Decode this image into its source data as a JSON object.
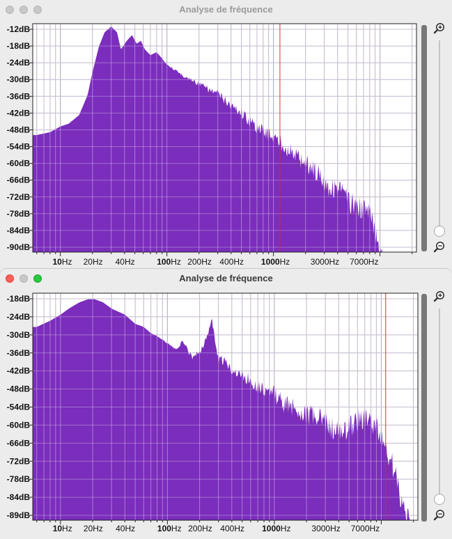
{
  "colors": {
    "spectrum": "#7b2dbc",
    "cursor_line": "#dd2a2a",
    "grid": "#bdbdbd"
  },
  "windows": [
    {
      "title": "Analyse de fréquence",
      "state": "inactive",
      "y_labels": [
        "-12dB",
        "-18dB",
        "-24dB",
        "-30dB",
        "-36dB",
        "-42dB",
        "-48dB",
        "-54dB",
        "-60dB",
        "-66dB",
        "-72dB",
        "-78dB",
        "-84dB",
        "-90dB"
      ],
      "x_labels": [
        {
          "num": "10",
          "unit": "Hz"
        },
        {
          "num": "20",
          "unit": "Hz"
        },
        {
          "num": "40",
          "unit": "Hz"
        },
        {
          "num": "100",
          "unit": "Hz"
        },
        {
          "num": "200",
          "unit": "Hz"
        },
        {
          "num": "400",
          "unit": "Hz"
        },
        {
          "num": "1000",
          "unit": "Hz"
        },
        {
          "num": "3000",
          "unit": "Hz"
        },
        {
          "num": "7000",
          "unit": "Hz"
        }
      ],
      "zoom_in_icon": "zoom-in-icon",
      "zoom_out_icon": "zoom-out-icon"
    },
    {
      "title": "Analyse de fréquence",
      "state": "active",
      "y_labels": [
        "-18dB",
        "-24dB",
        "-30dB",
        "-36dB",
        "-42dB",
        "-48dB",
        "-54dB",
        "-60dB",
        "-66dB",
        "-72dB",
        "-78dB",
        "-84dB",
        "-89dB"
      ],
      "x_labels": [
        {
          "num": "10",
          "unit": "Hz"
        },
        {
          "num": "20",
          "unit": "Hz"
        },
        {
          "num": "40",
          "unit": "Hz"
        },
        {
          "num": "100",
          "unit": "Hz"
        },
        {
          "num": "200",
          "unit": "Hz"
        },
        {
          "num": "400",
          "unit": "Hz"
        },
        {
          "num": "1000",
          "unit": "Hz"
        },
        {
          "num": "3000",
          "unit": "Hz"
        },
        {
          "num": "7000",
          "unit": "Hz"
        }
      ],
      "zoom_in_icon": "zoom-in-icon",
      "zoom_out_icon": "zoom-out-icon"
    }
  ],
  "chart_data": [
    {
      "type": "area",
      "x_unit": "Hz",
      "y_unit": "dB",
      "x_scale": "log",
      "ylim": [
        -91,
        -11
      ],
      "grid": true,
      "cursor_hz": 1150,
      "points": [
        [
          6,
          -50
        ],
        [
          8,
          -49
        ],
        [
          10,
          -47
        ],
        [
          12,
          -46
        ],
        [
          15,
          -43
        ],
        [
          18,
          -36
        ],
        [
          20,
          -28
        ],
        [
          23,
          -19
        ],
        [
          26,
          -14
        ],
        [
          30,
          -12
        ],
        [
          34,
          -14
        ],
        [
          37,
          -20
        ],
        [
          42,
          -17
        ],
        [
          47,
          -15
        ],
        [
          52,
          -18
        ],
        [
          57,
          -17
        ],
        [
          62,
          -20
        ],
        [
          70,
          -22
        ],
        [
          80,
          -21
        ],
        [
          90,
          -23
        ],
        [
          100,
          -25
        ],
        [
          120,
          -27
        ],
        [
          150,
          -29
        ],
        [
          200,
          -31
        ],
        [
          250,
          -33
        ],
        [
          300,
          -34
        ],
        [
          400,
          -38
        ],
        [
          500,
          -40
        ],
        [
          600,
          -43
        ],
        [
          700,
          -45
        ],
        [
          800,
          -46
        ],
        [
          1000,
          -48
        ],
        [
          1200,
          -50
        ],
        [
          1500,
          -53
        ],
        [
          2000,
          -56
        ],
        [
          2500,
          -59
        ],
        [
          3000,
          -62
        ],
        [
          3500,
          -65
        ],
        [
          4000,
          -64
        ],
        [
          4500,
          -66
        ],
        [
          5000,
          -69
        ],
        [
          6000,
          -71
        ],
        [
          7000,
          -72
        ],
        [
          8000,
          -73
        ],
        [
          9000,
          -80
        ],
        [
          10000,
          -85
        ],
        [
          11000,
          -90
        ],
        [
          11500,
          -91
        ]
      ]
    },
    {
      "type": "area",
      "x_unit": "Hz",
      "y_unit": "dB",
      "x_scale": "log",
      "ylim": [
        -89,
        -15
      ],
      "grid": true,
      "cursor_hz": 11000,
      "points": [
        [
          6,
          -26
        ],
        [
          8,
          -24
        ],
        [
          10,
          -22
        ],
        [
          12,
          -20
        ],
        [
          15,
          -18
        ],
        [
          18,
          -17
        ],
        [
          21,
          -17
        ],
        [
          25,
          -18
        ],
        [
          30,
          -20
        ],
        [
          40,
          -22
        ],
        [
          50,
          -25
        ],
        [
          60,
          -26
        ],
        [
          70,
          -28
        ],
        [
          80,
          -29
        ],
        [
          100,
          -31
        ],
        [
          120,
          -33
        ],
        [
          140,
          -30
        ],
        [
          150,
          -32
        ],
        [
          170,
          -35
        ],
        [
          200,
          -33
        ],
        [
          230,
          -29
        ],
        [
          260,
          -22
        ],
        [
          280,
          -30
        ],
        [
          300,
          -35
        ],
        [
          350,
          -36
        ],
        [
          400,
          -38
        ],
        [
          500,
          -40
        ],
        [
          600,
          -41
        ],
        [
          700,
          -43
        ],
        [
          1000,
          -45
        ],
        [
          1200,
          -48
        ],
        [
          1500,
          -49
        ],
        [
          2000,
          -51
        ],
        [
          3000,
          -53
        ],
        [
          4000,
          -57
        ],
        [
          5000,
          -55
        ],
        [
          6000,
          -52
        ],
        [
          7000,
          -52
        ],
        [
          8000,
          -53
        ],
        [
          9000,
          -55
        ],
        [
          10000,
          -58
        ],
        [
          11000,
          -61
        ],
        [
          12000,
          -65
        ],
        [
          13000,
          -68
        ],
        [
          14000,
          -72
        ],
        [
          15000,
          -77
        ],
        [
          16000,
          -79
        ],
        [
          17000,
          -82
        ],
        [
          18000,
          -85
        ],
        [
          19000,
          -88
        ],
        [
          20000,
          -89
        ]
      ]
    }
  ]
}
